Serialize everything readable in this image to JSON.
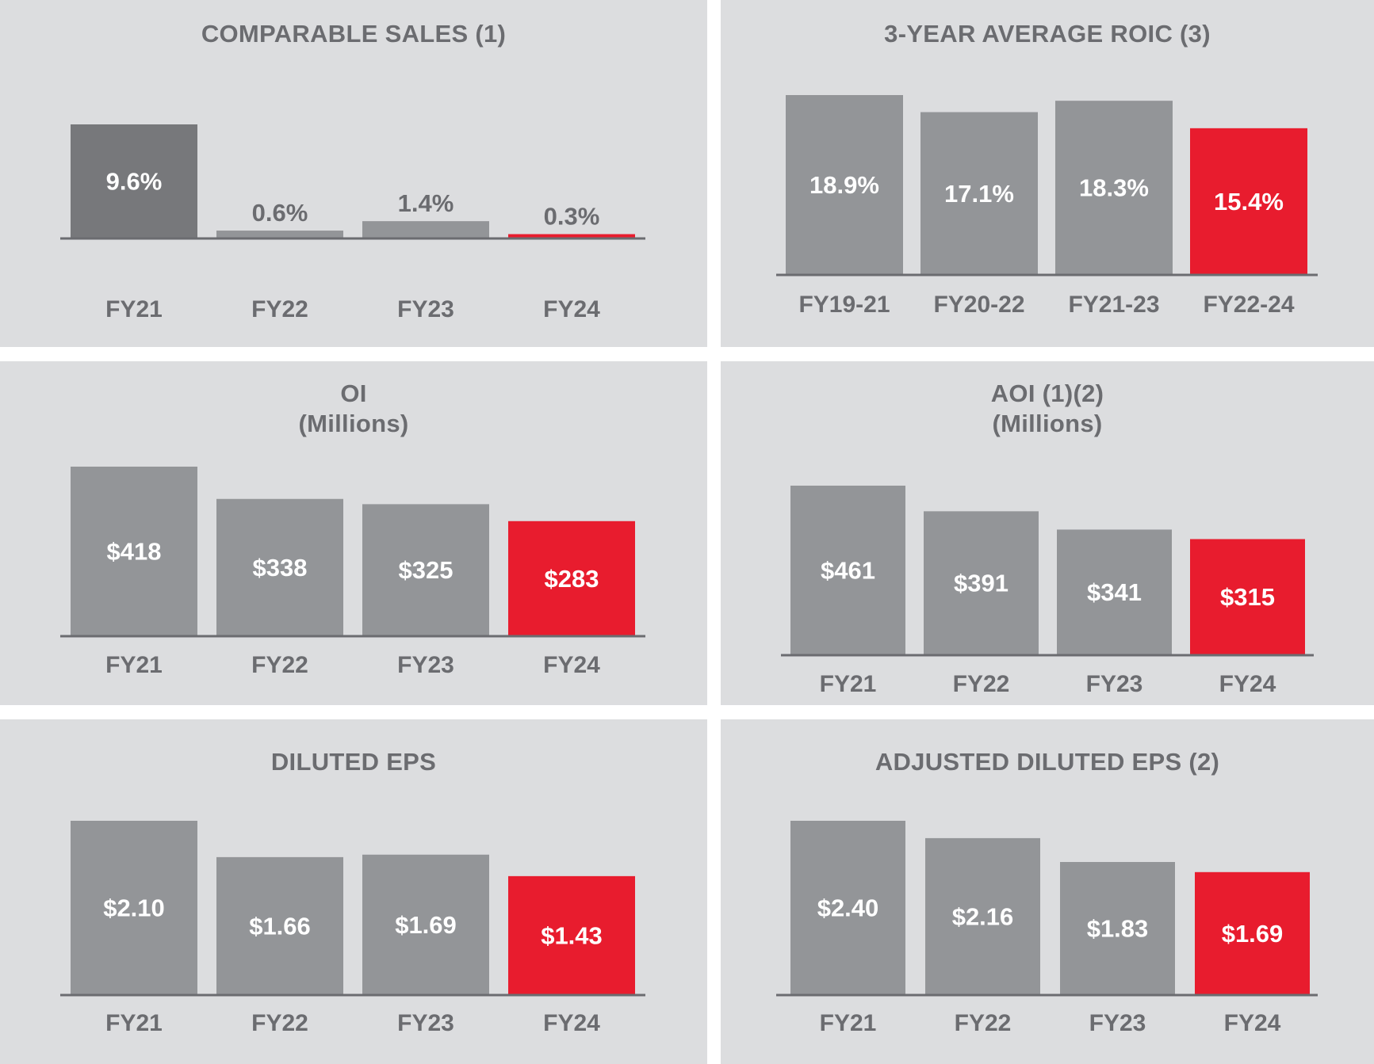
{
  "colors": {
    "panel_bg": "#dcdddf",
    "bar_gray": "#939598",
    "bar_dark": "#77787b",
    "bar_red": "#e81c2e",
    "text_gray": "#6b6c70",
    "axis": "#6b6c70",
    "white": "#ffffff"
  },
  "chart_data": [
    {
      "id": "comparable-sales",
      "type": "bar",
      "title": "COMPARABLE SALES (1)",
      "subtitle": "",
      "categories": [
        "FY21",
        "FY22",
        "FY23",
        "FY24"
      ],
      "values": [
        9.6,
        0.6,
        1.4,
        0.3
      ],
      "labels": [
        "9.6%",
        "0.6%",
        "1.4%",
        "0.3%"
      ],
      "bar_colors": [
        "#77787b",
        "#939598",
        "#939598",
        "#e81c2e"
      ],
      "ylim": [
        0,
        9.6
      ]
    },
    {
      "id": "three-year-average-roic",
      "type": "bar",
      "title": "3-YEAR AVERAGE ROIC (3)",
      "subtitle": "",
      "categories": [
        "FY19-21",
        "FY20-22",
        "FY21-23",
        "FY22-24"
      ],
      "values": [
        18.9,
        17.1,
        18.3,
        15.4
      ],
      "labels": [
        "18.9%",
        "17.1%",
        "18.3%",
        "15.4%"
      ],
      "bar_colors": [
        "#939598",
        "#939598",
        "#939598",
        "#e81c2e"
      ],
      "ylim": [
        0,
        18.9
      ]
    },
    {
      "id": "oi",
      "type": "bar",
      "title": "OI",
      "subtitle": "(Millions)",
      "categories": [
        "FY21",
        "FY22",
        "FY23",
        "FY24"
      ],
      "values": [
        418,
        338,
        325,
        283
      ],
      "labels": [
        "$418",
        "$338",
        "$325",
        "$283"
      ],
      "bar_colors": [
        "#939598",
        "#939598",
        "#939598",
        "#e81c2e"
      ],
      "ylim": [
        0,
        418
      ]
    },
    {
      "id": "aoi",
      "type": "bar",
      "title": "AOI (1)(2)",
      "subtitle": "(Millions)",
      "categories": [
        "FY21",
        "FY22",
        "FY23",
        "FY24"
      ],
      "values": [
        461,
        391,
        341,
        315
      ],
      "labels": [
        "$461",
        "$391",
        "$341",
        "$315"
      ],
      "bar_colors": [
        "#939598",
        "#939598",
        "#939598",
        "#e81c2e"
      ],
      "ylim": [
        0,
        461
      ]
    },
    {
      "id": "diluted-eps",
      "type": "bar",
      "title": "DILUTED EPS",
      "subtitle": "",
      "categories": [
        "FY21",
        "FY22",
        "FY23",
        "FY24"
      ],
      "values": [
        2.1,
        1.66,
        1.69,
        1.43
      ],
      "labels": [
        "$2.10",
        "$1.66",
        "$1.69",
        "$1.43"
      ],
      "bar_colors": [
        "#939598",
        "#939598",
        "#939598",
        "#e81c2e"
      ],
      "ylim": [
        0,
        2.1
      ]
    },
    {
      "id": "adjusted-diluted-eps",
      "type": "bar",
      "title": "ADJUSTED DILUTED EPS (2)",
      "subtitle": "",
      "categories": [
        "FY21",
        "FY22",
        "FY23",
        "FY24"
      ],
      "values": [
        2.4,
        2.16,
        1.83,
        1.69
      ],
      "labels": [
        "$2.40",
        "$2.16",
        "$1.83",
        "$1.69"
      ],
      "bar_colors": [
        "#939598",
        "#939598",
        "#939598",
        "#e81c2e"
      ],
      "ylim": [
        0,
        2.4
      ]
    }
  ]
}
